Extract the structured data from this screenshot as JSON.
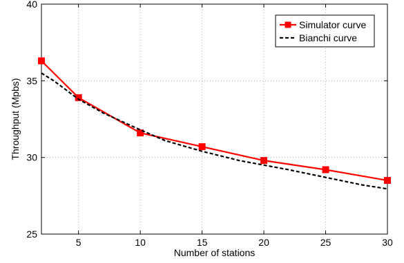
{
  "chart_data": {
    "type": "line",
    "title": "",
    "xlabel": "Number of stations",
    "ylabel": "Throughput (Mpbs)",
    "xlim": [
      2,
      30
    ],
    "ylim": [
      25,
      40
    ],
    "xticks": [
      5,
      10,
      15,
      20,
      25,
      30
    ],
    "yticks": [
      25,
      30,
      35,
      40
    ],
    "grid": true,
    "legend_position": "top-right",
    "series": [
      {
        "name": "Simulator curve",
        "color": "#ff0000",
        "line_style": "solid",
        "marker": "square",
        "x": [
          2,
          5,
          10,
          15,
          20,
          25,
          30
        ],
        "y": [
          36.3,
          33.9,
          31.6,
          30.7,
          29.8,
          29.2,
          28.5
        ]
      },
      {
        "name": "Bianchi curve",
        "color": "#000000",
        "line_style": "dashed",
        "marker": "none",
        "x": [
          2,
          3,
          5,
          7,
          10,
          12,
          15,
          18,
          20,
          22,
          25,
          28,
          30
        ],
        "y": [
          35.5,
          35.0,
          33.8,
          32.9,
          31.8,
          31.1,
          30.4,
          29.8,
          29.5,
          29.2,
          28.7,
          28.2,
          27.95
        ]
      }
    ]
  }
}
